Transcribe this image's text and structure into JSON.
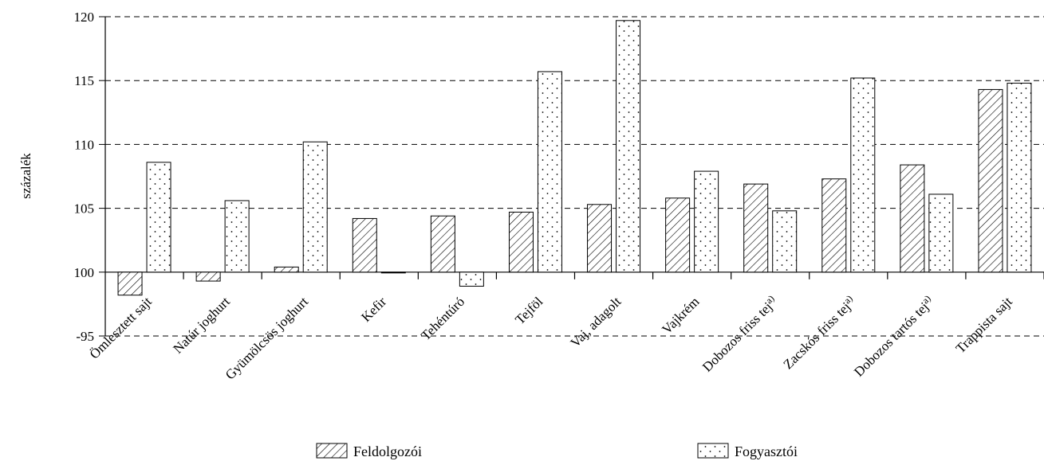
{
  "chart_data": {
    "type": "bar",
    "ylabel": "százalék",
    "ylim": [
      95,
      120
    ],
    "y_ticks": [
      95,
      100,
      105,
      110,
      115,
      120
    ],
    "y_tick_labels": [
      "-95",
      "100",
      "105",
      "110",
      "115",
      "120"
    ],
    "baseline": 100,
    "grid": "dashed-horizontal",
    "legend_position": "bottom",
    "categories": [
      "Ömlesztett sajt",
      "Natúr joghurt",
      "Gyümölcsös joghurt",
      "Kefir",
      "Tehéntúró",
      "Tejföl",
      "Vaj, adagolt",
      "Vajkrém",
      "Dobozos friss tej",
      "Zacskós friss tej",
      "Dobozos tartós tej",
      "Trappista sajt"
    ],
    "category_superscripts": [
      "",
      "",
      "",
      "",
      "",
      "",
      "",
      "",
      "a)",
      "a)",
      "a)",
      ""
    ],
    "series": [
      {
        "name": "Feldolgozói",
        "pattern": "hatch",
        "values": [
          98.2,
          99.3,
          100.4,
          104.2,
          104.4,
          104.7,
          105.3,
          105.8,
          106.9,
          107.3,
          108.4,
          114.3
        ]
      },
      {
        "name": "Fogyasztói",
        "pattern": "dots",
        "values": [
          108.6,
          105.6,
          110.2,
          100.0,
          98.9,
          115.7,
          119.7,
          107.9,
          104.8,
          115.2,
          106.1,
          114.8
        ]
      }
    ]
  }
}
